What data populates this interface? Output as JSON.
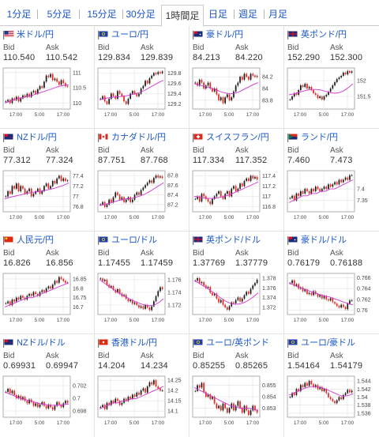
{
  "tabs": [
    {
      "label": "1分足"
    },
    {
      "label": "5分足"
    },
    {
      "label": "15分足"
    },
    {
      "label": "30分足"
    },
    {
      "label": "1時間足"
    },
    {
      "label": "日足"
    },
    {
      "label": "週足"
    },
    {
      "label": "月足"
    }
  ],
  "active_tab": "1時間足",
  "labels": {
    "bid": "Bid",
    "ask": "Ask"
  },
  "colors": {
    "up": "#1a1a1a",
    "down": "#e8271e",
    "ma": "#d236d2",
    "link": "#1a56c7"
  },
  "pairs": [
    {
      "title": "米ドル/円",
      "flag": "us",
      "bid": "110.540",
      "ask": "110.542",
      "y_ticks": [
        "111",
        "110.5",
        "110"
      ],
      "x_ticks": [
        "17:00",
        "5:00",
        "17:00"
      ],
      "chart_data": {
        "type": "line",
        "y_range": [
          109.8,
          111.15
        ],
        "close": [
          110.05,
          110.1,
          110.0,
          110.15,
          110.1,
          110.2,
          110.05,
          110.15,
          110.25,
          110.2,
          110.3,
          110.2,
          110.35,
          110.4,
          110.3,
          110.45,
          110.55,
          110.5,
          110.7,
          110.9,
          110.85,
          110.95,
          110.75,
          110.8,
          110.7,
          110.6,
          110.75,
          110.65,
          110.55,
          110.54
        ],
        "ma": [
          110.0,
          110.05,
          110.1,
          110.15,
          110.18,
          110.22,
          110.25,
          110.3,
          110.35,
          110.4,
          110.45,
          110.5,
          110.55,
          110.58,
          110.6
        ]
      }
    },
    {
      "title": "ユーロ/円",
      "flag": "eu",
      "bid": "129.834",
      "ask": "129.839",
      "y_ticks": [
        "129.8",
        "129.6",
        "129.4",
        "129.2"
      ],
      "x_ticks": [
        "17:00",
        "5:00",
        "17:00"
      ],
      "chart_data": {
        "type": "line",
        "y_range": [
          129.1,
          129.9
        ],
        "close": [
          129.3,
          129.35,
          129.25,
          129.2,
          129.3,
          129.4,
          129.35,
          129.3,
          129.45,
          129.4,
          129.35,
          129.25,
          129.2,
          129.3,
          129.4,
          129.45,
          129.4,
          129.35,
          129.4,
          129.5,
          129.55,
          129.65,
          129.6,
          129.7,
          129.75,
          129.8,
          129.78,
          129.82,
          129.8,
          129.83
        ],
        "ma": [
          129.28,
          129.3,
          129.32,
          129.33,
          129.34,
          129.35,
          129.36,
          129.38,
          129.4,
          129.43,
          129.47,
          129.52,
          129.57,
          129.62,
          129.66
        ]
      }
    },
    {
      "title": "豪ドル/円",
      "flag": "au",
      "bid": "84.213",
      "ask": "84.220",
      "y_ticks": [
        "84.2",
        "84",
        "83.8"
      ],
      "x_ticks": [
        "17:00",
        "5:00",
        "17:00"
      ],
      "chart_data": {
        "type": "line",
        "y_range": [
          83.65,
          84.35
        ],
        "close": [
          84.1,
          84.05,
          84.15,
          84.1,
          84.0,
          84.05,
          84.1,
          84.0,
          83.95,
          84.0,
          83.9,
          83.8,
          83.85,
          83.75,
          83.85,
          83.9,
          83.8,
          83.85,
          83.95,
          84.05,
          84.1,
          84.2,
          84.15,
          84.25,
          84.2,
          84.15,
          84.25,
          84.22,
          84.2,
          84.21
        ],
        "ma": [
          84.08,
          84.06,
          84.04,
          84.02,
          84.0,
          83.97,
          83.94,
          83.92,
          83.91,
          83.92,
          83.95,
          83.99,
          84.03,
          84.07,
          84.1
        ]
      }
    },
    {
      "title": "英ポンド/円",
      "flag": "gb",
      "bid": "152.290",
      "ask": "152.300",
      "y_ticks": [
        "152",
        "151.5"
      ],
      "x_ticks": [
        "17:00",
        "5:00",
        "17:00"
      ],
      "chart_data": {
        "type": "line",
        "y_range": [
          151.1,
          152.4
        ],
        "close": [
          151.4,
          151.5,
          151.6,
          151.55,
          151.7,
          151.85,
          151.8,
          151.9,
          151.75,
          151.8,
          151.7,
          151.6,
          151.55,
          151.45,
          151.5,
          151.4,
          151.5,
          151.55,
          151.65,
          151.75,
          151.85,
          151.95,
          152.05,
          152.1,
          152.15,
          152.25,
          152.2,
          152.3,
          152.25,
          152.29
        ],
        "ma": [
          151.55,
          151.58,
          151.62,
          151.66,
          151.7,
          151.72,
          151.72,
          151.7,
          151.66,
          151.62,
          151.6,
          151.62,
          151.68,
          151.78,
          151.9
        ]
      }
    },
    {
      "title": "NZドル/円",
      "flag": "nz",
      "bid": "77.312",
      "ask": "77.324",
      "y_ticks": [
        "77.4",
        "77.2",
        "77",
        "76.8"
      ],
      "x_ticks": [
        "17:00",
        "5:00",
        "17:00"
      ],
      "chart_data": {
        "type": "line",
        "y_range": [
          76.7,
          77.5
        ],
        "close": [
          77.0,
          77.1,
          77.05,
          77.2,
          77.15,
          77.25,
          77.1,
          77.2,
          77.15,
          77.05,
          77.1,
          77.15,
          77.0,
          77.05,
          77.1,
          77.15,
          77.05,
          77.1,
          77.2,
          77.25,
          77.15,
          77.2,
          77.3,
          77.25,
          77.35,
          77.4,
          77.3,
          77.35,
          77.3,
          77.31
        ],
        "ma": [
          76.95,
          76.98,
          77.0,
          77.02,
          77.04,
          77.06,
          77.08,
          77.09,
          77.1,
          77.12,
          77.14,
          77.16,
          77.19,
          77.22,
          77.26
        ]
      }
    },
    {
      "title": "カナダドル/円",
      "flag": "ca",
      "bid": "87.751",
      "ask": "87.768",
      "y_ticks": [
        "87.8",
        "87.6",
        "87.4",
        "87.2"
      ],
      "x_ticks": [
        "17:00",
        "5:00",
        "17:00"
      ],
      "chart_data": {
        "type": "line",
        "y_range": [
          87.05,
          87.9
        ],
        "close": [
          87.2,
          87.25,
          87.15,
          87.2,
          87.3,
          87.25,
          87.35,
          87.45,
          87.4,
          87.3,
          87.35,
          87.25,
          87.3,
          87.35,
          87.25,
          87.3,
          87.4,
          87.45,
          87.4,
          87.5,
          87.55,
          87.6,
          87.65,
          87.7,
          87.65,
          87.75,
          87.8,
          87.76,
          87.78,
          87.75
        ],
        "ma": [
          87.18,
          87.2,
          87.22,
          87.25,
          87.28,
          87.3,
          87.32,
          87.33,
          87.35,
          87.38,
          87.42,
          87.47,
          87.53,
          87.59,
          87.65
        ]
      }
    },
    {
      "title": "スイスフラン/円",
      "flag": "ch",
      "bid": "117.334",
      "ask": "117.352",
      "y_ticks": [
        "117.4",
        "117.2",
        "117",
        "116.8"
      ],
      "x_ticks": [
        "17:00",
        "5:00",
        "17:00"
      ],
      "chart_data": {
        "type": "line",
        "y_range": [
          116.7,
          117.5
        ],
        "close": [
          116.95,
          117.0,
          116.9,
          117.05,
          117.0,
          116.95,
          116.9,
          116.85,
          116.95,
          117.0,
          117.05,
          117.1,
          117.0,
          116.95,
          117.05,
          117.1,
          117.0,
          117.15,
          117.2,
          117.1,
          117.15,
          117.25,
          117.2,
          117.3,
          117.35,
          117.3,
          117.4,
          117.35,
          117.38,
          117.33
        ],
        "ma": [
          117.0,
          116.99,
          116.97,
          116.96,
          116.96,
          116.97,
          116.99,
          117.01,
          117.04,
          117.08,
          117.12,
          117.16,
          117.2,
          117.24,
          117.28
        ]
      }
    },
    {
      "title": "ランド/円",
      "flag": "za",
      "bid": "7.460",
      "ask": "7.473",
      "y_ticks": [
        "7.4",
        "7.35"
      ],
      "x_ticks": [
        "17:00",
        "5:00",
        "17:00"
      ],
      "chart_data": {
        "type": "line",
        "y_range": [
          7.3,
          7.48
        ],
        "close": [
          7.36,
          7.37,
          7.35,
          7.38,
          7.37,
          7.39,
          7.38,
          7.4,
          7.39,
          7.38,
          7.4,
          7.39,
          7.41,
          7.4,
          7.39,
          7.4,
          7.41,
          7.4,
          7.42,
          7.41,
          7.42,
          7.43,
          7.42,
          7.44,
          7.43,
          7.44,
          7.45,
          7.44,
          7.46,
          7.46
        ],
        "ma": [
          7.34,
          7.35,
          7.36,
          7.37,
          7.37,
          7.38,
          7.38,
          7.39,
          7.39,
          7.4,
          7.4,
          7.41,
          7.42,
          7.43,
          7.44
        ]
      }
    },
    {
      "title": "人民元/円",
      "flag": "cn",
      "bid": "16.826",
      "ask": "16.856",
      "y_ticks": [
        "16.85",
        "16.8",
        "16.75",
        "16.7"
      ],
      "x_ticks": [
        "17:00",
        "5:00",
        "17:00"
      ],
      "chart_data": {
        "type": "line",
        "y_range": [
          16.66,
          16.88
        ],
        "close": [
          16.72,
          16.73,
          16.71,
          16.74,
          16.73,
          16.75,
          16.74,
          16.76,
          16.75,
          16.74,
          16.76,
          16.77,
          16.76,
          16.78,
          16.77,
          16.76,
          16.78,
          16.79,
          16.78,
          16.8,
          16.81,
          16.8,
          16.82,
          16.84,
          16.83,
          16.86,
          16.85,
          16.84,
          16.83,
          16.83
        ],
        "ma": [
          16.7,
          16.71,
          16.72,
          16.73,
          16.74,
          16.75,
          16.75,
          16.76,
          16.77,
          16.78,
          16.79,
          16.8,
          16.81,
          16.82,
          16.83
        ]
      }
    },
    {
      "title": "ユーロ/ドル",
      "flag": "eu",
      "bid": "1.17455",
      "ask": "1.17459",
      "y_ticks": [
        "1.176",
        "1.174",
        "1.172"
      ],
      "x_ticks": [
        "17:00",
        "5:00",
        "17:00"
      ],
      "chart_data": {
        "type": "line",
        "y_range": [
          1.1705,
          1.177
        ],
        "close": [
          1.1762,
          1.1758,
          1.176,
          1.1752,
          1.1748,
          1.175,
          1.1744,
          1.174,
          1.1745,
          1.1738,
          1.1734,
          1.1736,
          1.173,
          1.1726,
          1.1728,
          1.1722,
          1.1724,
          1.172,
          1.1716,
          1.1718,
          1.1714,
          1.172,
          1.1716,
          1.1712,
          1.1718,
          1.1726,
          1.1734,
          1.1742,
          1.1748,
          1.1745
        ],
        "ma": [
          1.176,
          1.1755,
          1.175,
          1.1745,
          1.174,
          1.1736,
          1.1732,
          1.1728,
          1.1725,
          1.1722,
          1.172,
          1.1719,
          1.172,
          1.1724,
          1.173
        ]
      }
    },
    {
      "title": "英ポンド/ドル",
      "flag": "gb",
      "bid": "1.37769",
      "ask": "1.37779",
      "y_ticks": [
        "1.378",
        "1.376",
        "1.374",
        "1.372"
      ],
      "x_ticks": [
        "17:00",
        "5:00",
        "17:00"
      ],
      "chart_data": {
        "type": "line",
        "y_range": [
          1.3705,
          1.379
        ],
        "close": [
          1.3775,
          1.378,
          1.377,
          1.3772,
          1.3765,
          1.376,
          1.3762,
          1.375,
          1.3745,
          1.3748,
          1.3738,
          1.373,
          1.3735,
          1.3725,
          1.372,
          1.3715,
          1.3722,
          1.373,
          1.3728,
          1.3735,
          1.374,
          1.3732,
          1.3738,
          1.3745,
          1.3752,
          1.3748,
          1.3758,
          1.3765,
          1.377,
          1.3777
        ],
        "ma": [
          1.3775,
          1.377,
          1.3764,
          1.3758,
          1.3752,
          1.3745,
          1.3738,
          1.3732,
          1.3728,
          1.3726,
          1.3727,
          1.373,
          1.3735,
          1.3742,
          1.375
        ]
      }
    },
    {
      "title": "豪ドル/ドル",
      "flag": "au",
      "bid": "0.76179",
      "ask": "0.76188",
      "y_ticks": [
        "0.766",
        "0.764",
        "0.762",
        "0.76"
      ],
      "x_ticks": [
        "17:00",
        "5:00",
        "17:00"
      ],
      "chart_data": {
        "type": "line",
        "y_range": [
          0.7592,
          0.7668
        ],
        "close": [
          0.765,
          0.7655,
          0.7645,
          0.7648,
          0.764,
          0.7642,
          0.7635,
          0.7638,
          0.763,
          0.7632,
          0.7628,
          0.7635,
          0.763,
          0.7625,
          0.7628,
          0.7622,
          0.7626,
          0.762,
          0.7618,
          0.7622,
          0.7615,
          0.7612,
          0.7608,
          0.7605,
          0.761,
          0.7606,
          0.7602,
          0.7612,
          0.7618,
          0.7618
        ],
        "ma": [
          0.765,
          0.7647,
          0.7643,
          0.764,
          0.7637,
          0.7634,
          0.7631,
          0.7628,
          0.7626,
          0.7624,
          0.7621,
          0.7618,
          0.7615,
          0.7612,
          0.761
        ]
      }
    },
    {
      "title": "NZドル/ドル",
      "flag": "nz",
      "bid": "0.69931",
      "ask": "0.69947",
      "y_ticks": [
        "0.702",
        "0.7",
        "0.698"
      ],
      "x_ticks": [
        "17:00",
        "5:00",
        "17:00"
      ],
      "chart_data": {
        "type": "line",
        "y_range": [
          0.697,
          0.7035
        ],
        "close": [
          0.701,
          0.7015,
          0.7008,
          0.7012,
          0.7005,
          0.7,
          0.7004,
          0.6998,
          0.7002,
          0.6996,
          0.6992,
          0.6998,
          0.6994,
          0.6988,
          0.6992,
          0.6986,
          0.699,
          0.6994,
          0.6988,
          0.6984,
          0.699,
          0.6986,
          0.6982,
          0.6988,
          0.6994,
          0.699,
          0.6986,
          0.6992,
          0.6996,
          0.6993
        ],
        "ma": [
          0.701,
          0.7007,
          0.7004,
          0.7001,
          0.6999,
          0.6997,
          0.6995,
          0.6993,
          0.6991,
          0.699,
          0.6989,
          0.6989,
          0.6989,
          0.699,
          0.6991
        ]
      }
    },
    {
      "title": "香港ドル/円",
      "flag": "hk",
      "bid": "14.204",
      "ask": "14.234",
      "y_ticks": [
        "14.25",
        "14.2",
        "14.15",
        "14.1"
      ],
      "x_ticks": [
        "17:00",
        "5:00",
        "17:00"
      ],
      "chart_data": {
        "type": "line",
        "y_range": [
          14.07,
          14.27
        ],
        "close": [
          14.12,
          14.13,
          14.11,
          14.14,
          14.13,
          14.15,
          14.14,
          14.16,
          14.15,
          14.13,
          14.14,
          14.16,
          14.15,
          14.17,
          14.16,
          14.18,
          14.17,
          14.19,
          14.18,
          14.2,
          14.21,
          14.19,
          14.22,
          14.24,
          14.23,
          14.25,
          14.22,
          14.21,
          14.2,
          14.2
        ],
        "ma": [
          14.11,
          14.12,
          14.13,
          14.14,
          14.14,
          14.15,
          14.15,
          14.16,
          14.16,
          14.17,
          14.18,
          14.19,
          14.2,
          14.21,
          14.22
        ]
      }
    },
    {
      "title": "ユーロ/英ポンド",
      "flag": "eu",
      "bid": "0.85255",
      "ask": "0.85265",
      "y_ticks": [
        "0.855",
        "0.854",
        "0.853"
      ],
      "x_ticks": [
        "17:00",
        "5:00",
        "17:00"
      ],
      "chart_data": {
        "type": "line",
        "y_range": [
          0.8522,
          0.8558
        ],
        "close": [
          0.8545,
          0.855,
          0.8548,
          0.8552,
          0.8544,
          0.854,
          0.8542,
          0.8538,
          0.854,
          0.8534,
          0.853,
          0.8532,
          0.8528,
          0.8534,
          0.853,
          0.8526,
          0.853,
          0.8534,
          0.8528,
          0.8532,
          0.8536,
          0.853,
          0.8526,
          0.8532,
          0.8528,
          0.8524,
          0.8528,
          0.8532,
          0.8528,
          0.8526
        ],
        "ma": [
          0.8548,
          0.8546,
          0.8544,
          0.8542,
          0.854,
          0.8538,
          0.8536,
          0.8534,
          0.8532,
          0.8531,
          0.853,
          0.853,
          0.853,
          0.8529,
          0.8528
        ]
      }
    },
    {
      "title": "ユーロ/豪ドル",
      "flag": "eu",
      "bid": "1.54164",
      "ask": "1.54179",
      "y_ticks": [
        "1.544",
        "1.542",
        "1.54",
        "1.538",
        "1.536"
      ],
      "x_ticks": [
        "17:00",
        "5:00",
        "17:00"
      ],
      "chart_data": {
        "type": "line",
        "y_range": [
          1.535,
          1.5452
        ],
        "close": [
          1.54,
          1.541,
          1.5405,
          1.542,
          1.5415,
          1.543,
          1.5425,
          1.5435,
          1.5428,
          1.544,
          1.5432,
          1.5425,
          1.543,
          1.542,
          1.5425,
          1.5415,
          1.542,
          1.541,
          1.54,
          1.5395,
          1.539,
          1.5385,
          1.5392,
          1.54,
          1.5395,
          1.5405,
          1.541,
          1.5418,
          1.5412,
          1.5416
        ],
        "ma": [
          1.5405,
          1.541,
          1.5415,
          1.542,
          1.5424,
          1.5426,
          1.5426,
          1.5424,
          1.542,
          1.5415,
          1.541,
          1.5405,
          1.5402,
          1.5404,
          1.5408
        ]
      }
    }
  ]
}
